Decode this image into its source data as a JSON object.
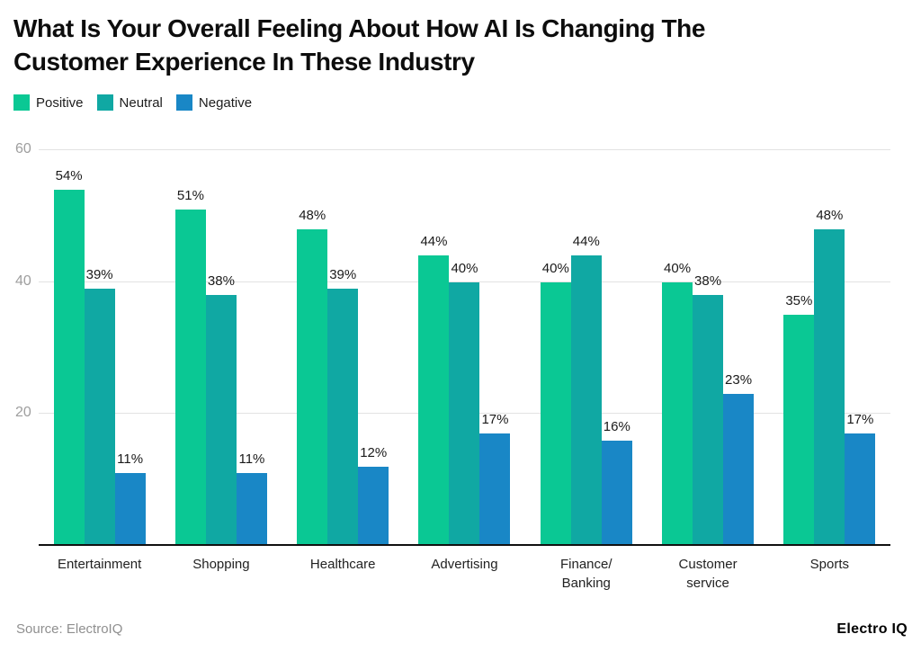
{
  "title": {
    "lines": [
      "What Is Your Overall Feeling About How AI Is Changing The",
      "Customer Experience In These Industry"
    ]
  },
  "legend": {
    "items": [
      {
        "label": "Positive",
        "color": "#0AC894"
      },
      {
        "label": "Neutral",
        "color": "#10A8A3"
      },
      {
        "label": "Negative",
        "color": "#1987C6"
      }
    ]
  },
  "chart_data": {
    "type": "bar",
    "title": "What Is Your Overall Feeling About How AI Is Changing The Customer Experience In These Industry",
    "categories": [
      "Entertainment",
      "Shopping",
      "Healthcare",
      "Advertising",
      "Finance/Banking",
      "Customer service",
      "Sports"
    ],
    "category_lines": [
      [
        "Entertainment"
      ],
      [
        "Shopping"
      ],
      [
        "Healthcare"
      ],
      [
        "Advertising"
      ],
      [
        "Finance/",
        "Banking"
      ],
      [
        "Customer",
        "service"
      ],
      [
        "Sports"
      ]
    ],
    "series": [
      {
        "name": "Positive",
        "color": "#0AC894",
        "values": [
          54,
          51,
          48,
          44,
          40,
          40,
          35
        ]
      },
      {
        "name": "Neutral",
        "color": "#10A8A3",
        "values": [
          39,
          38,
          39,
          40,
          44,
          38,
          48
        ]
      },
      {
        "name": "Negative",
        "color": "#1987C6",
        "values": [
          11,
          11,
          12,
          17,
          16,
          23,
          17
        ]
      }
    ],
    "value_suffix": "%",
    "ylim": [
      0,
      64
    ],
    "gridlines": [
      20,
      40,
      60
    ],
    "grid_on": true,
    "legend_position": "top-left",
    "xlabel": "",
    "ylabel": ""
  },
  "y_axis": {
    "ticks": [
      "60",
      "40",
      "20"
    ]
  },
  "footer": {
    "source": "Source: ElectroIQ",
    "brand": "Electro IQ"
  }
}
